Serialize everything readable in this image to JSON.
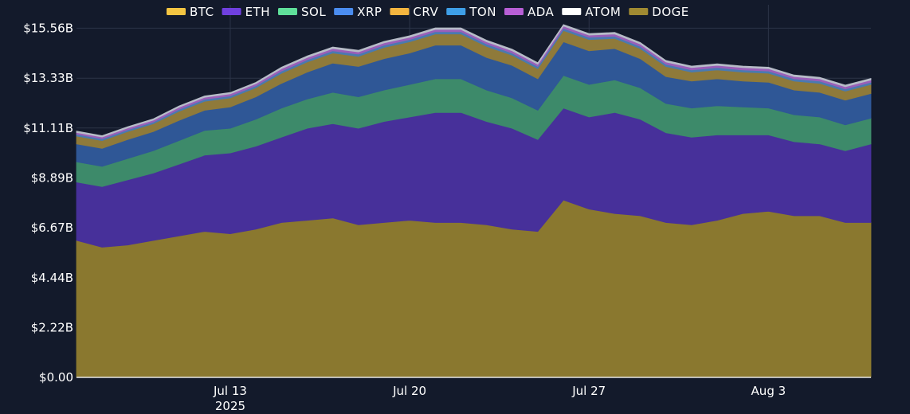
{
  "colors": {
    "background": "#131a2b",
    "grid": "#2c3448",
    "axis_baseline": "#e8e8e8",
    "text": "#ffffff"
  },
  "chart_data": {
    "type": "area",
    "stacked": true,
    "title": "",
    "xlabel": "",
    "ylabel": "",
    "x_start": "2025-07-07",
    "x_end": "2025-08-07",
    "x_ticks": [
      {
        "date": "2025-07-13",
        "label": "Jul 13",
        "sublabel": "2025"
      },
      {
        "date": "2025-07-20",
        "label": "Jul 20",
        "sublabel": ""
      },
      {
        "date": "2025-07-27",
        "label": "Jul 27",
        "sublabel": ""
      },
      {
        "date": "2025-08-03",
        "label": "Aug 3",
        "sublabel": ""
      }
    ],
    "y_ticks": [
      {
        "value": 0,
        "label": "$0.00"
      },
      {
        "value": 2.22,
        "label": "$2.22B"
      },
      {
        "value": 4.44,
        "label": "$4.44B"
      },
      {
        "value": 6.67,
        "label": "$6.67B"
      },
      {
        "value": 8.89,
        "label": "$8.89B"
      },
      {
        "value": 11.11,
        "label": "$11.11B"
      },
      {
        "value": 13.33,
        "label": "$13.33B"
      },
      {
        "value": 15.56,
        "label": "$15.56B"
      }
    ],
    "ylim": [
      0,
      16.6
    ],
    "unit": "USD billions",
    "grid": true,
    "legend_position": "top-center",
    "dates": [
      "2025-07-07",
      "2025-07-08",
      "2025-07-09",
      "2025-07-10",
      "2025-07-11",
      "2025-07-12",
      "2025-07-13",
      "2025-07-14",
      "2025-07-15",
      "2025-07-16",
      "2025-07-17",
      "2025-07-18",
      "2025-07-19",
      "2025-07-20",
      "2025-07-21",
      "2025-07-22",
      "2025-07-23",
      "2025-07-24",
      "2025-07-25",
      "2025-07-26",
      "2025-07-27",
      "2025-07-28",
      "2025-07-29",
      "2025-07-30",
      "2025-07-31",
      "2025-08-01",
      "2025-08-02",
      "2025-08-03",
      "2025-08-04",
      "2025-08-05",
      "2025-08-06",
      "2025-08-07"
    ],
    "series": [
      {
        "name": "DOGE",
        "color": "#8a782f",
        "values": [
          6.1,
          5.8,
          5.9,
          6.1,
          6.3,
          6.5,
          6.4,
          6.6,
          6.9,
          7.0,
          7.1,
          6.8,
          6.9,
          7.0,
          6.9,
          6.9,
          6.8,
          6.6,
          6.5,
          7.9,
          7.5,
          7.3,
          7.2,
          6.9,
          6.8,
          7.0,
          7.3,
          7.4,
          7.2,
          7.2,
          6.9,
          6.9
        ]
      },
      {
        "name": "ETH",
        "color": "#47309a",
        "values": [
          2.6,
          2.7,
          2.9,
          3.0,
          3.2,
          3.4,
          3.6,
          3.7,
          3.8,
          4.1,
          4.2,
          4.3,
          4.5,
          4.6,
          4.9,
          4.9,
          4.6,
          4.5,
          4.1,
          4.1,
          4.1,
          4.5,
          4.3,
          4.0,
          3.9,
          3.8,
          3.5,
          3.4,
          3.3,
          3.2,
          3.2,
          3.5
        ]
      },
      {
        "name": "SOL",
        "color": "#3d8a6a",
        "values": [
          0.9,
          0.9,
          0.95,
          1.0,
          1.05,
          1.1,
          1.1,
          1.2,
          1.3,
          1.3,
          1.4,
          1.4,
          1.4,
          1.45,
          1.5,
          1.5,
          1.4,
          1.35,
          1.3,
          1.45,
          1.45,
          1.45,
          1.4,
          1.3,
          1.3,
          1.3,
          1.25,
          1.2,
          1.2,
          1.2,
          1.15,
          1.15
        ]
      },
      {
        "name": "XRP",
        "color": "#2f5796",
        "values": [
          0.8,
          0.8,
          0.85,
          0.85,
          0.9,
          0.9,
          0.95,
          1.0,
          1.1,
          1.2,
          1.3,
          1.35,
          1.4,
          1.4,
          1.5,
          1.5,
          1.45,
          1.45,
          1.4,
          1.5,
          1.5,
          1.4,
          1.3,
          1.2,
          1.2,
          1.2,
          1.15,
          1.15,
          1.1,
          1.1,
          1.1,
          1.1
        ]
      },
      {
        "name": "CRV",
        "color": "#8f7a3a",
        "values": [
          0.35,
          0.35,
          0.35,
          0.35,
          0.4,
          0.4,
          0.4,
          0.4,
          0.45,
          0.45,
          0.45,
          0.45,
          0.5,
          0.5,
          0.5,
          0.5,
          0.5,
          0.45,
          0.45,
          0.5,
          0.5,
          0.45,
          0.45,
          0.45,
          0.4,
          0.4,
          0.4,
          0.4,
          0.4,
          0.4,
          0.4,
          0.4
        ]
      },
      {
        "name": "TON",
        "color": "#4a7ab0",
        "values": [
          0.08,
          0.08,
          0.08,
          0.08,
          0.09,
          0.09,
          0.09,
          0.09,
          0.1,
          0.1,
          0.1,
          0.1,
          0.1,
          0.1,
          0.1,
          0.1,
          0.1,
          0.1,
          0.1,
          0.1,
          0.1,
          0.1,
          0.1,
          0.1,
          0.1,
          0.1,
          0.1,
          0.1,
          0.1,
          0.1,
          0.1,
          0.1
        ]
      },
      {
        "name": "ADA",
        "color": "#9a5fb8",
        "values": [
          0.08,
          0.08,
          0.08,
          0.08,
          0.09,
          0.09,
          0.09,
          0.09,
          0.1,
          0.1,
          0.1,
          0.1,
          0.1,
          0.1,
          0.1,
          0.1,
          0.1,
          0.1,
          0.1,
          0.1,
          0.1,
          0.1,
          0.1,
          0.1,
          0.1,
          0.1,
          0.1,
          0.1,
          0.1,
          0.1,
          0.1,
          0.1
        ]
      },
      {
        "name": "ATOM",
        "color": "#b7bcc8",
        "values": [
          0.06,
          0.06,
          0.06,
          0.06,
          0.06,
          0.06,
          0.06,
          0.06,
          0.07,
          0.07,
          0.07,
          0.07,
          0.07,
          0.07,
          0.07,
          0.07,
          0.07,
          0.07,
          0.07,
          0.07,
          0.07,
          0.07,
          0.07,
          0.07,
          0.07,
          0.07,
          0.07,
          0.07,
          0.07,
          0.07,
          0.07,
          0.07
        ]
      }
    ],
    "legend": [
      {
        "name": "BTC",
        "color": "#f4c542"
      },
      {
        "name": "ETH",
        "color": "#7040e0"
      },
      {
        "name": "SOL",
        "color": "#5fe09a"
      },
      {
        "name": "XRP",
        "color": "#4b8df0"
      },
      {
        "name": "CRV",
        "color": "#f4b53f"
      },
      {
        "name": "TON",
        "color": "#3e9fe8"
      },
      {
        "name": "ADA",
        "color": "#b85fd6"
      },
      {
        "name": "ATOM",
        "color": "#ffffff"
      },
      {
        "name": "DOGE",
        "color": "#a08a32"
      }
    ]
  }
}
